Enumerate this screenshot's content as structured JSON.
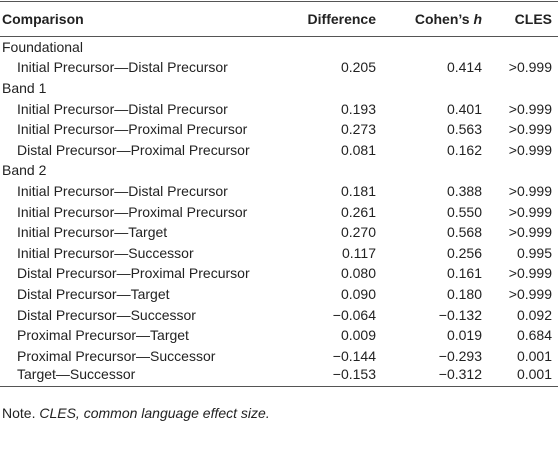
{
  "header": {
    "comparison": "Comparison",
    "difference": "Difference",
    "cohens": "Cohen’s",
    "cohens_h": "h",
    "cles": "CLES"
  },
  "groups": [
    {
      "label": "Foundational",
      "rows": [
        [
          "Initial Precursor—Distal Precursor",
          "0.205",
          "0.414",
          ">0.999"
        ]
      ]
    },
    {
      "label": "Band 1",
      "rows": [
        [
          "Initial Precursor—Distal Precursor",
          "0.193",
          "0.401",
          ">0.999"
        ],
        [
          "Initial Precursor—Proximal Precursor",
          "0.273",
          "0.563",
          ">0.999"
        ],
        [
          "Distal Precursor—Proximal Precursor",
          "0.081",
          "0.162",
          ">0.999"
        ]
      ]
    },
    {
      "label": "Band 2",
      "rows": [
        [
          "Initial Precursor—Distal Precursor",
          "0.181",
          "0.388",
          ">0.999"
        ],
        [
          "Initial Precursor—Proximal Precursor",
          "0.261",
          "0.550",
          ">0.999"
        ],
        [
          "Initial Precursor—Target",
          "0.270",
          "0.568",
          ">0.999"
        ],
        [
          "Initial Precursor—Successor",
          "0.117",
          "0.256",
          "0.995"
        ],
        [
          "Distal Precursor—Proximal Precursor",
          "0.080",
          "0.161",
          ">0.999"
        ],
        [
          "Distal Precursor—Target",
          "0.090",
          "0.180",
          ">0.999"
        ],
        [
          "Distal Precursor—Successor",
          "−0.064",
          "−0.132",
          "0.092"
        ],
        [
          "Proximal Precursor—Target",
          "0.009",
          "0.019",
          "0.684"
        ],
        [
          "Proximal Precursor—Successor",
          "−0.144",
          "−0.293",
          "0.001"
        ],
        [
          "Target—Successor",
          "−0.153",
          "−0.312",
          "0.001"
        ]
      ]
    }
  ],
  "note": {
    "prefix": "Note.",
    "text": "CLES, common language effect size."
  }
}
